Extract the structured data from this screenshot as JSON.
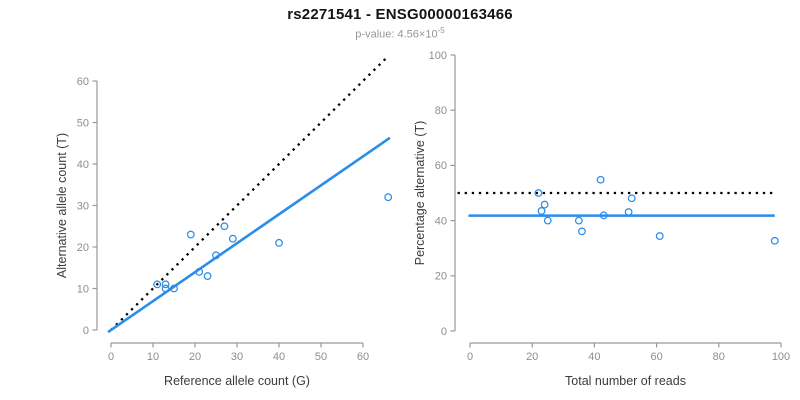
{
  "header": {
    "title": "rs2271541 - ENSG00000163466",
    "subtitle_base": "p-value: 4.56×10",
    "subtitle_exp": "-5"
  },
  "colors": {
    "accent_blue": "#2b8ceb",
    "dotted_black": "#000000",
    "axis_gray": "#999999",
    "tick_label_gray": "#8e8e8e",
    "axis_title_dark": "#3c3c3c"
  },
  "chart_data": [
    {
      "type": "scatter",
      "name": "allele-counts-plot",
      "xlabel": "Reference allele count (G)",
      "ylabel": "Alternative allele count (T)",
      "x_ticks": [
        0,
        10,
        20,
        30,
        40,
        50,
        60
      ],
      "y_ticks": [
        0,
        10,
        20,
        30,
        40,
        50,
        60
      ],
      "xlim": [
        -2.6,
        68.6
      ],
      "ylim": [
        -2.9,
        65.9
      ],
      "grid": false,
      "legend": false,
      "points": [
        [
          11,
          11
        ],
        [
          13,
          10
        ],
        [
          13,
          11
        ],
        [
          15,
          10
        ],
        [
          19,
          23
        ],
        [
          21,
          14
        ],
        [
          23,
          13
        ],
        [
          25,
          18
        ],
        [
          27,
          25
        ],
        [
          29,
          22
        ],
        [
          40,
          21
        ],
        [
          66,
          32
        ]
      ],
      "lines": [
        {
          "name": "identity-line",
          "style": "dotted",
          "color": "#000000",
          "x1": 0,
          "y1": 0,
          "x2": 66,
          "y2": 66
        },
        {
          "name": "regression-line",
          "style": "solid",
          "color": "#2b8ceb",
          "x1": -0.7,
          "y1": -0.5,
          "x2": 66.4,
          "y2": 46.3
        }
      ]
    },
    {
      "type": "scatter",
      "name": "percentage-plot",
      "xlabel": "Total number of reads",
      "ylabel": "Percentage alternative (T)",
      "x_ticks": [
        0,
        20,
        40,
        60,
        80,
        100
      ],
      "y_ticks": [
        0,
        20,
        40,
        60,
        80,
        100
      ],
      "xlim": [
        -4,
        104
      ],
      "ylim": [
        0,
        100
      ],
      "grid": false,
      "legend": false,
      "points": [
        [
          22,
          50.0
        ],
        [
          23,
          43.5
        ],
        [
          24,
          45.8
        ],
        [
          25,
          40.0
        ],
        [
          35,
          40.0
        ],
        [
          36,
          36.1
        ],
        [
          42,
          54.8
        ],
        [
          43,
          41.9
        ],
        [
          51,
          43.1
        ],
        [
          52,
          48.1
        ],
        [
          61,
          34.4
        ],
        [
          98,
          32.7
        ]
      ],
      "lines": [
        {
          "name": "expected-50pct-line",
          "style": "dotted",
          "color": "#000000",
          "x1": -4,
          "y1": 50,
          "x2": 97.5,
          "y2": 50
        },
        {
          "name": "mean-percentage-line",
          "style": "solid",
          "color": "#2b8ceb",
          "x1": -0.5,
          "y1": 41.8,
          "x2": 98,
          "y2": 41.8
        }
      ]
    }
  ]
}
